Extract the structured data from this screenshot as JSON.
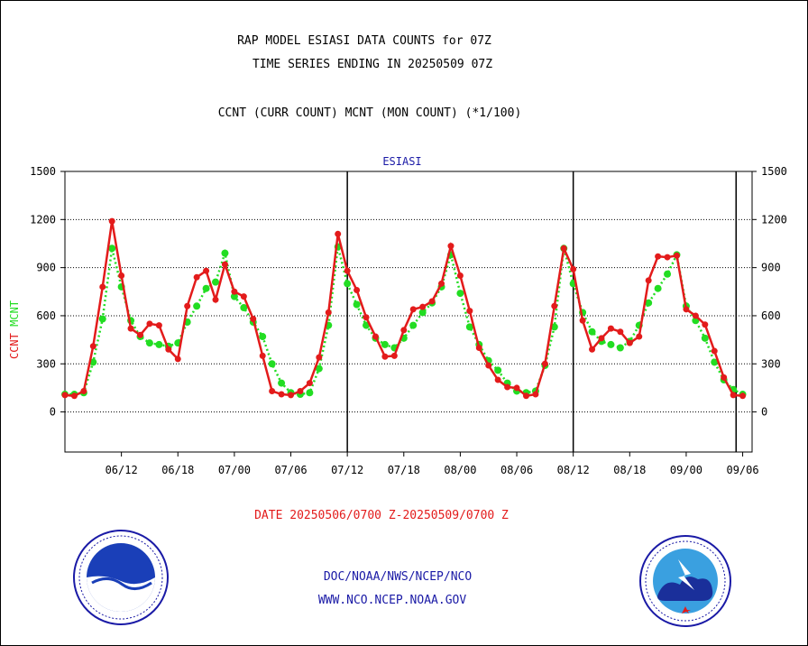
{
  "title": "RAP MODEL ESIASI DATA COUNTS for 07Z",
  "subtitle_line2": "TIME SERIES ENDING IN 20250509 07Z",
  "subtitle": "CCNT (CURR COUNT) MCNT (MON COUNT) (*1/100)",
  "panel_label": "ESIASI",
  "date_range": "DATE 20250506/0700 Z-20250509/0700 Z",
  "footer": {
    "line1": "DOC/NOAA/NWS/NCEP/NCO",
    "line2": "WWW.NCO.NCEP.NOAA.GOV"
  },
  "logos": {
    "left": "noaa-logo",
    "right": "national-weather-service-logo"
  },
  "colors": {
    "ccnt": "#e31b1b",
    "mcnt": "#22dd22",
    "text_blue": "#1a1aa6"
  },
  "chart_data": {
    "type": "line",
    "ylabel_parts": [
      {
        "text": "CCNT",
        "color": "#e31b1b"
      },
      {
        "text": "MCNT",
        "color": "#22dd22"
      }
    ],
    "ylim": [
      -250,
      1500
    ],
    "yticks": [
      0,
      300,
      600,
      900,
      1200,
      1500
    ],
    "ytick_labels": [
      "0",
      "300",
      "600",
      "900",
      "1200",
      "1500"
    ],
    "xlim": [
      0,
      73
    ],
    "xticks": [
      6,
      12,
      18,
      24,
      30,
      36,
      42,
      48,
      54,
      60,
      66,
      72
    ],
    "xtick_labels": [
      "06/12",
      "06/18",
      "07/00",
      "07/06",
      "07/12",
      "07/18",
      "08/00",
      "08/06",
      "08/12",
      "08/18",
      "09/00",
      "09/06"
    ],
    "day_separators": [
      30,
      54,
      71.3
    ],
    "grid": "horizontal-dotted",
    "series": [
      {
        "name": "CCNT",
        "color": "#e31b1b",
        "style": "solid",
        "values": [
          105,
          100,
          130,
          410,
          780,
          1190,
          850,
          520,
          480,
          550,
          540,
          390,
          330,
          660,
          840,
          880,
          700,
          920,
          750,
          720,
          580,
          350,
          130,
          110,
          105,
          130,
          180,
          340,
          620,
          1110,
          880,
          760,
          590,
          470,
          345,
          350,
          510,
          640,
          655,
          690,
          800,
          1035,
          850,
          630,
          400,
          290,
          200,
          155,
          150,
          100,
          110,
          300,
          660,
          1020,
          890,
          570,
          390,
          460,
          520,
          500,
          430,
          470,
          820,
          970,
          965,
          975,
          640,
          600,
          545,
          380,
          215,
          105,
          100
        ]
      },
      {
        "name": "MCNT",
        "color": "#22dd22",
        "style": "dotted",
        "values": [
          110,
          110,
          120,
          310,
          580,
          1020,
          780,
          570,
          470,
          430,
          420,
          410,
          430,
          560,
          660,
          770,
          810,
          990,
          720,
          650,
          560,
          470,
          300,
          180,
          120,
          110,
          120,
          270,
          540,
          1030,
          800,
          670,
          540,
          460,
          420,
          400,
          460,
          540,
          620,
          680,
          780,
          980,
          740,
          530,
          420,
          320,
          260,
          180,
          130,
          120,
          130,
          290,
          530,
          1020,
          800,
          620,
          500,
          440,
          420,
          400,
          440,
          540,
          680,
          770,
          860,
          980,
          660,
          570,
          460,
          310,
          200,
          140,
          110
        ]
      }
    ]
  }
}
